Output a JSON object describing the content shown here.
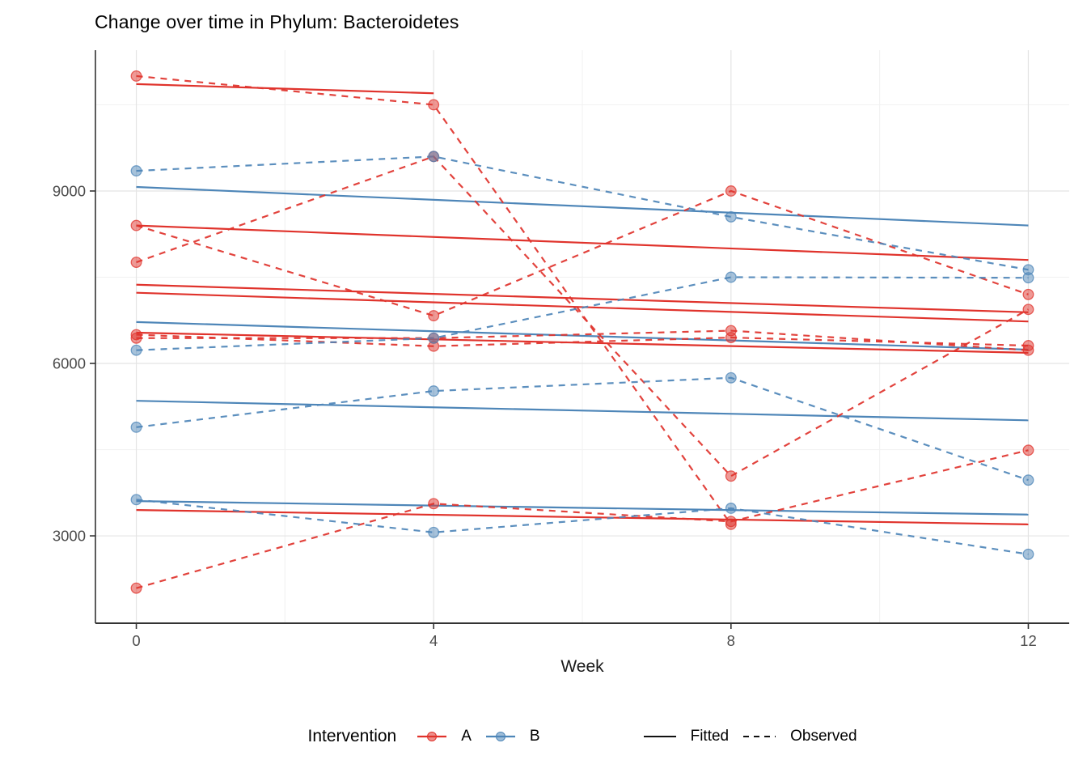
{
  "title": "Change over time in Phylum: Bacteroidetes",
  "axes": {
    "x_label": "Week",
    "x_ticks": [
      "0",
      "4",
      "8",
      "12"
    ],
    "y_ticks": [
      "3000",
      "6000",
      "9000"
    ]
  },
  "legend": {
    "title": "Intervention",
    "group_a_label": "A",
    "group_b_label": "B",
    "fitted_label": "Fitted",
    "observed_label": "Observed"
  },
  "colors": {
    "group_a": "#e0332c",
    "group_b": "#4e86b8",
    "grid_major": "#e4e4e4",
    "grid_minor": "#f2f2f2",
    "axis_line": "#333333",
    "tick_text": "#4d4d4d",
    "legend_key": "#111111"
  },
  "chart_data": {
    "type": "line",
    "title": "Change over time in Phylum: Bacteroidetes",
    "xlabel": "Week",
    "ylabel": "",
    "weeks": [
      0,
      4,
      8,
      12
    ],
    "x_tick_values": [
      0,
      4,
      8,
      12
    ],
    "x_minor_ticks": [
      2,
      6,
      10
    ],
    "y_tick_values": [
      3000,
      6000,
      9000
    ],
    "y_minor_ticks": [
      4500,
      7500,
      10500
    ],
    "xlim": [
      -0.55,
      12.55
    ],
    "ylim": [
      1480,
      11450
    ],
    "grid": true,
    "legend_position": "bottom",
    "series_styles": {
      "fitted": "solid",
      "observed": "dashed"
    },
    "subjects": [
      {
        "id": "A1",
        "group": "A",
        "observed": [
          11000,
          10500,
          3200,
          null
        ],
        "fitted_weeks": [
          0,
          4
        ],
        "fitted": [
          10860,
          10700
        ]
      },
      {
        "id": "A2",
        "group": "A",
        "observed": [
          8400,
          6830,
          9000,
          7200
        ],
        "fitted_weeks": [
          0,
          12
        ],
        "fitted": [
          8400,
          7800
        ]
      },
      {
        "id": "A3",
        "group": "A",
        "observed": [
          7760,
          9600,
          4040,
          6940
        ],
        "fitted_weeks": [
          0,
          12
        ],
        "fitted": [
          7370,
          6890
        ]
      },
      {
        "id": "A4",
        "group": "A",
        "observed": [
          6500,
          6300,
          6450,
          6310
        ],
        "fitted_weeks": [
          0,
          12
        ],
        "fitted": [
          7230,
          6730
        ]
      },
      {
        "id": "A5",
        "group": "A",
        "observed": [
          6440,
          6440,
          6570,
          6230
        ],
        "fitted_weeks": [
          0,
          12
        ],
        "fitted": [
          6535,
          6185
        ]
      },
      {
        "id": "A6",
        "group": "A",
        "observed": [
          2090,
          3560,
          3250,
          4490
        ],
        "fitted_weeks": [
          0,
          12
        ],
        "fitted": [
          3450,
          3200
        ]
      },
      {
        "id": "B1",
        "group": "B",
        "observed": [
          9350,
          9600,
          8550,
          7630
        ],
        "fitted_weeks": [
          0,
          12
        ],
        "fitted": [
          9070,
          8400
        ]
      },
      {
        "id": "B2",
        "group": "B",
        "observed": [
          6230,
          6440,
          7500,
          7490
        ],
        "fitted_weeks": [
          0,
          12
        ],
        "fitted": [
          6720,
          6240
        ]
      },
      {
        "id": "B3",
        "group": "B",
        "observed": [
          4890,
          5520,
          5750,
          3970
        ],
        "fitted_weeks": [
          0,
          12
        ],
        "fitted": [
          5350,
          5010
        ]
      },
      {
        "id": "B4",
        "group": "B",
        "observed": [
          3630,
          3060,
          3480,
          2680
        ],
        "fitted_weeks": [
          0,
          12
        ],
        "fitted": [
          3605,
          3370
        ]
      }
    ]
  }
}
